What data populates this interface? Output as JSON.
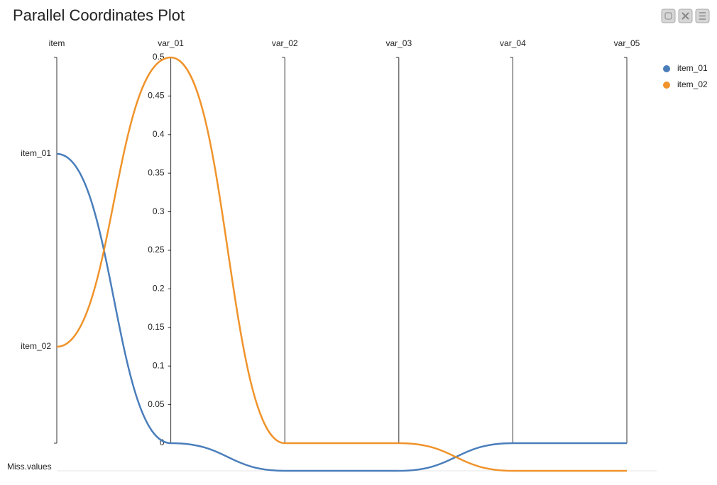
{
  "chart_data": {
    "type": "parallel",
    "title": "Parallel Coordinates Plot",
    "category_axis": {
      "name": "item",
      "categories": [
        "item_01",
        "item_02"
      ]
    },
    "dimensions": [
      "var_01",
      "var_02",
      "var_03",
      "var_04",
      "var_05"
    ],
    "ylim": [
      0,
      0.5
    ],
    "yticks": [
      0,
      0.05,
      0.1,
      0.15,
      0.2,
      0.25,
      0.3,
      0.35,
      0.4,
      0.45,
      0.5
    ],
    "missing_label": "Miss.values",
    "legend": "right",
    "series": [
      {
        "name": "item_01",
        "color": "#4a7ebb",
        "values": [
          0,
          null,
          null,
          0,
          0
        ]
      },
      {
        "name": "item_02",
        "color": "#f0932b",
        "values": [
          0.5,
          0,
          0,
          null,
          null
        ]
      }
    ]
  }
}
